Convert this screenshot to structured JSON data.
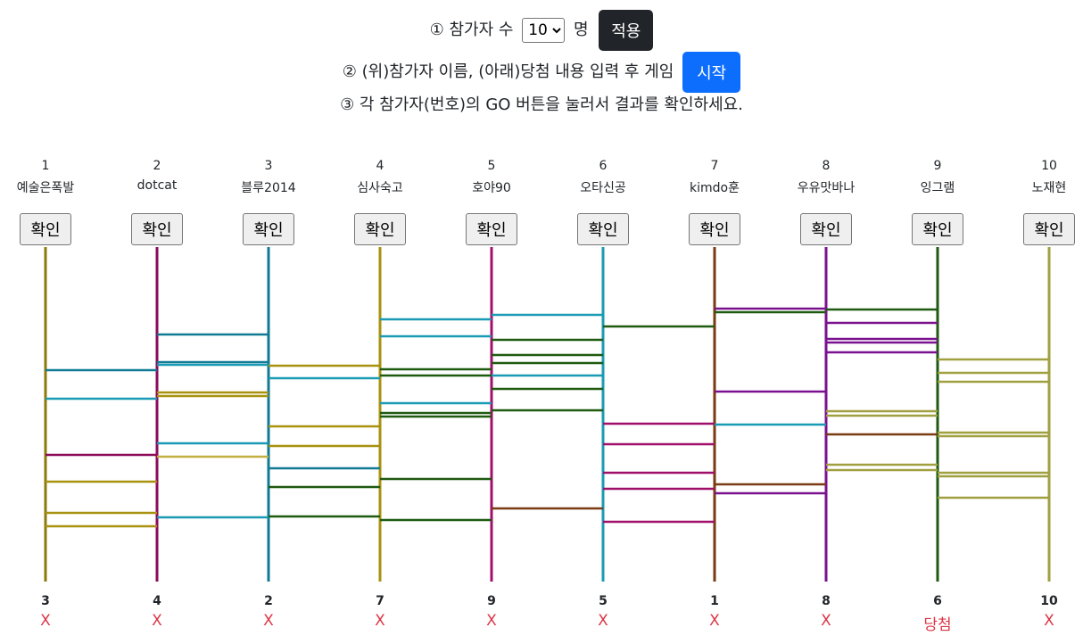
{
  "instructions": {
    "step1_prefix": "① 참가자 수",
    "step1_suffix": "명",
    "participant_count": "10",
    "apply_label": "적용",
    "step2_text": "② (위)참가자 이름, (아래)당첨 내용 입력 후 게임",
    "start_label": "시작",
    "step3_text": "③ 각 참가자(번호)의 GO 버튼을 눌러서 결과를 확인하세요."
  },
  "participants": [
    {
      "number": "1",
      "name": "예술은폭발",
      "button": "확인",
      "color": "#8B7A0A"
    },
    {
      "number": "2",
      "name": "dotcat",
      "button": "확인",
      "color": "#8B0A5A"
    },
    {
      "number": "3",
      "name": "블루2014",
      "button": "확인",
      "color": "#107A94"
    },
    {
      "number": "4",
      "name": "심사숙고",
      "button": "확인",
      "color": "#A8920F"
    },
    {
      "number": "5",
      "name": "호야90",
      "button": "확인",
      "color": "#A0106A"
    },
    {
      "number": "6",
      "name": "오타신공",
      "button": "확인",
      "color": "#1A9BB5"
    },
    {
      "number": "7",
      "name": "kimdo훈",
      "button": "확인",
      "color": "#7A3A12"
    },
    {
      "number": "8",
      "name": "우유맛바나",
      "button": "확인",
      "color": "#7A1290"
    },
    {
      "number": "9",
      "name": "잉그램",
      "button": "확인",
      "color": "#1E5A10"
    },
    {
      "number": "10",
      "name": "노재현",
      "button": "확인",
      "color": "#A0A040"
    }
  ],
  "results": [
    {
      "number": "3",
      "text": "X"
    },
    {
      "number": "4",
      "text": "X"
    },
    {
      "number": "2",
      "text": "X"
    },
    {
      "number": "7",
      "text": "X"
    },
    {
      "number": "9",
      "text": "X"
    },
    {
      "number": "5",
      "text": "X"
    },
    {
      "number": "1",
      "text": "X"
    },
    {
      "number": "8",
      "text": "X"
    },
    {
      "number": "6",
      "text": "당첨"
    },
    {
      "number": "10",
      "text": "X"
    }
  ],
  "ladder": {
    "rungs": [
      {
        "gap": 1,
        "level": 415,
        "color": "#107A94"
      },
      {
        "gap": 1,
        "level": 447,
        "color": "#1A9BB5"
      },
      {
        "gap": 1,
        "level": 510,
        "color": "#8B0A5A"
      },
      {
        "gap": 1,
        "level": 540,
        "color": "#A8920F"
      },
      {
        "gap": 1,
        "level": 575,
        "color": "#A8920F"
      },
      {
        "gap": 1,
        "level": 590,
        "color": "#A8920F"
      },
      {
        "gap": 2,
        "level": 375,
        "color": "#107A94"
      },
      {
        "gap": 2,
        "level": 406,
        "color": "#107A94"
      },
      {
        "gap": 2,
        "level": 409,
        "color": "#1A9BB5"
      },
      {
        "gap": 2,
        "level": 440,
        "color": "#A8920F"
      },
      {
        "gap": 2,
        "level": 444,
        "color": "#A8920F"
      },
      {
        "gap": 2,
        "level": 497,
        "color": "#1A9BB5"
      },
      {
        "gap": 2,
        "level": 512,
        "color": "#C2B040"
      },
      {
        "gap": 2,
        "level": 580,
        "color": "#1A9BB5"
      },
      {
        "gap": 3,
        "level": 410,
        "color": "#A8920F"
      },
      {
        "gap": 3,
        "level": 424,
        "color": "#1A9BB5"
      },
      {
        "gap": 3,
        "level": 478,
        "color": "#A8920F"
      },
      {
        "gap": 3,
        "level": 500,
        "color": "#A8920F"
      },
      {
        "gap": 3,
        "level": 525,
        "color": "#107A94"
      },
      {
        "gap": 3,
        "level": 546,
        "color": "#1E5A10"
      },
      {
        "gap": 3,
        "level": 579,
        "color": "#1E5A10"
      },
      {
        "gap": 4,
        "level": 358,
        "color": "#1A9BB5"
      },
      {
        "gap": 4,
        "level": 377,
        "color": "#1A9BB5"
      },
      {
        "gap": 4,
        "level": 414,
        "color": "#1E5A10"
      },
      {
        "gap": 4,
        "level": 421,
        "color": "#1E5A10"
      },
      {
        "gap": 4,
        "level": 452,
        "color": "#1A9BB5"
      },
      {
        "gap": 4,
        "level": 463,
        "color": "#1E5A10"
      },
      {
        "gap": 4,
        "level": 467,
        "color": "#1E5A10"
      },
      {
        "gap": 4,
        "level": 537,
        "color": "#1E5A10"
      },
      {
        "gap": 4,
        "level": 583,
        "color": "#1E5A10"
      },
      {
        "gap": 5,
        "level": 353,
        "color": "#1A9BB5"
      },
      {
        "gap": 5,
        "level": 381,
        "color": "#1E5A10"
      },
      {
        "gap": 5,
        "level": 398,
        "color": "#1E5A10"
      },
      {
        "gap": 5,
        "level": 407,
        "color": "#1E5A10"
      },
      {
        "gap": 5,
        "level": 421,
        "color": "#1A9BB5"
      },
      {
        "gap": 5,
        "level": 436,
        "color": "#1E5A10"
      },
      {
        "gap": 5,
        "level": 460,
        "color": "#1E5A10"
      },
      {
        "gap": 5,
        "level": 570,
        "color": "#7A3A12"
      },
      {
        "gap": 6,
        "level": 366,
        "color": "#1E5A10"
      },
      {
        "gap": 6,
        "level": 475,
        "color": "#A0106A"
      },
      {
        "gap": 6,
        "level": 498,
        "color": "#A0106A"
      },
      {
        "gap": 6,
        "level": 530,
        "color": "#A0106A"
      },
      {
        "gap": 6,
        "level": 548,
        "color": "#A0106A"
      },
      {
        "gap": 6,
        "level": 585,
        "color": "#A0106A"
      },
      {
        "gap": 7,
        "level": 346,
        "color": "#7A1290"
      },
      {
        "gap": 7,
        "level": 350,
        "color": "#1E5A10"
      },
      {
        "gap": 7,
        "level": 439,
        "color": "#7A1290"
      },
      {
        "gap": 7,
        "level": 476,
        "color": "#1A9BB5"
      },
      {
        "gap": 7,
        "level": 543,
        "color": "#7A3A12"
      },
      {
        "gap": 7,
        "level": 553,
        "color": "#7A1290"
      },
      {
        "gap": 8,
        "level": 347,
        "color": "#1E5A10"
      },
      {
        "gap": 8,
        "level": 362,
        "color": "#7A1290"
      },
      {
        "gap": 8,
        "level": 380,
        "color": "#7A1290"
      },
      {
        "gap": 8,
        "level": 384,
        "color": "#7A1290"
      },
      {
        "gap": 8,
        "level": 395,
        "color": "#7A1290"
      },
      {
        "gap": 8,
        "level": 461,
        "color": "#A0A040"
      },
      {
        "gap": 8,
        "level": 466,
        "color": "#A0A040"
      },
      {
        "gap": 8,
        "level": 487,
        "color": "#7A3A12"
      },
      {
        "gap": 8,
        "level": 521,
        "color": "#A0A040"
      },
      {
        "gap": 8,
        "level": 527,
        "color": "#A0A040"
      },
      {
        "gap": 9,
        "level": 403,
        "color": "#A0A040"
      },
      {
        "gap": 9,
        "level": 418,
        "color": "#A0A040"
      },
      {
        "gap": 9,
        "level": 428,
        "color": "#A0A040"
      },
      {
        "gap": 9,
        "level": 485,
        "color": "#A0A040"
      },
      {
        "gap": 9,
        "level": 489,
        "color": "#A0A040"
      },
      {
        "gap": 9,
        "level": 530,
        "color": "#A0A040"
      },
      {
        "gap": 9,
        "level": 534,
        "color": "#A0A040"
      },
      {
        "gap": 9,
        "level": 558,
        "color": "#A0A040"
      }
    ]
  }
}
